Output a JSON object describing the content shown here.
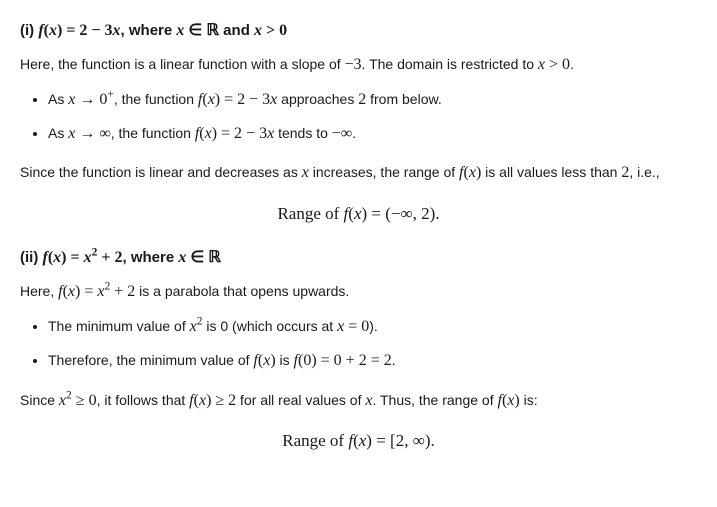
{
  "section1": {
    "heading_html": "(i) <span class='math'><span class='mi'>f</span>(<span class='mi'>x</span>) = 2 − 3<span class='mi'>x</span></span>, where <span class='math'><span class='mi'>x</span> ∈ <span class='bb'>ℝ</span></span> and <span class='math'><span class='mi'>x</span> &gt; 0</span>",
    "intro_html": "Here, the function is a linear function with a slope of <span class='math'>−3</span>. The domain is restricted to <span class='math'><span class='mi'>x</span> &gt; 0</span>.",
    "bullets": [
      "As <span class='math'><span class='mi'>x</span> → 0<sup>+</sup></span>, the function <span class='math'><span class='mi'>f</span>(<span class='mi'>x</span>) = 2 − 3<span class='mi'>x</span></span> approaches <span class='math'>2</span> from below.",
      "As <span class='math'><span class='mi'>x</span> → ∞</span>, the function <span class='math'><span class='mi'>f</span>(<span class='mi'>x</span>) = 2 − 3<span class='mi'>x</span></span> tends to <span class='math'>−∞</span>."
    ],
    "conclusion_html": "Since the function is linear and decreases as <span class='math'><span class='mi'>x</span></span> increases, the range of <span class='math'><span class='mi'>f</span>(<span class='mi'>x</span>)</span> is all values less than <span class='math'>2</span>, i.e.,",
    "display_html": "Range of <span class='mi'>f</span>(<span class='mi'>x</span>) = (−∞, 2)."
  },
  "section2": {
    "heading_html": "(ii) <span class='math'><span class='mi'>f</span>(<span class='mi'>x</span>) = <span class='mi'>x</span><sup>2</sup> + 2</span>, where <span class='math'><span class='mi'>x</span> ∈ <span class='bb'>ℝ</span></span>",
    "intro_html": "Here, <span class='math'><span class='mi'>f</span>(<span class='mi'>x</span>) = <span class='mi'>x</span><sup>2</sup> + 2</span> is a parabola that opens upwards.",
    "bullets": [
      "The minimum value of <span class='math'><span class='mi'>x</span><sup>2</sup></span> is 0 (which occurs at <span class='math'><span class='mi'>x</span> = 0</span>).",
      "Therefore, the minimum value of <span class='math'><span class='mi'>f</span>(<span class='mi'>x</span>)</span> is <span class='math'><span class='mi'>f</span>(0) = 0 + 2 = 2</span>."
    ],
    "conclusion_html": "Since <span class='math'><span class='mi'>x</span><sup>2</sup> ≥ 0</span>, it follows that <span class='math'><span class='mi'>f</span>(<span class='mi'>x</span>) ≥ 2</span> for all real values of <span class='math'><span class='mi'>x</span></span>. Thus, the range of <span class='math'><span class='mi'>f</span>(<span class='mi'>x</span>)</span> is:",
    "display_html": "Range of <span class='mi'>f</span>(<span class='mi'>x</span>) = [2, ∞)."
  }
}
